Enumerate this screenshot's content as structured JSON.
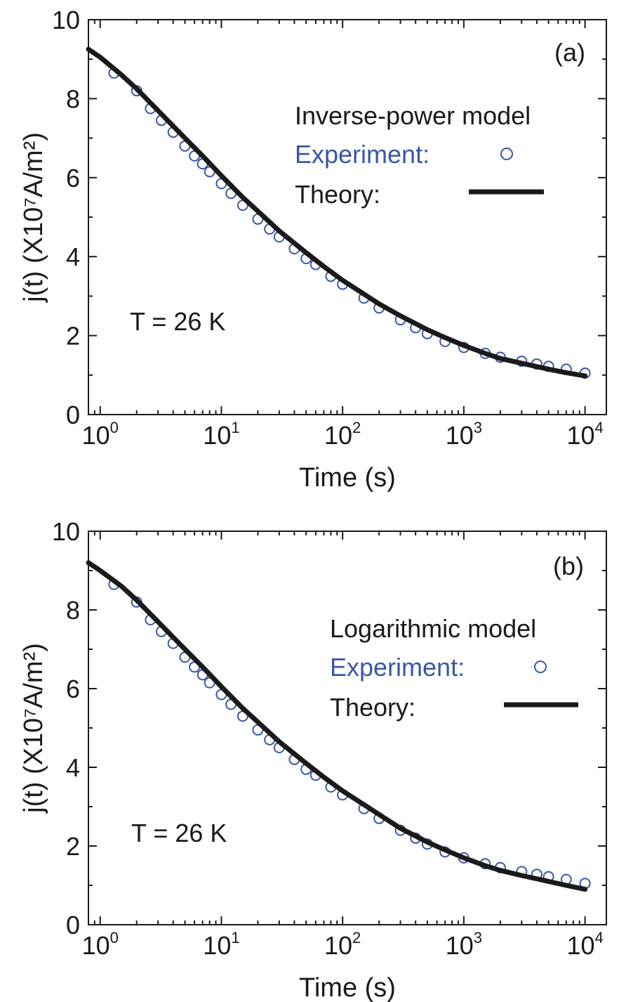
{
  "chart_data": [
    {
      "type": "scatter",
      "panel_label": "(a)",
      "annotation": "T = 26 K",
      "legend_title": "Inverse-power model",
      "legend_placement": "top-right",
      "xlabel": "Time (s)",
      "ylabel": "j(t) (X10⁷A/m²)",
      "xscale": "log",
      "xlim": [
        0.8,
        15000
      ],
      "ylim": [
        0,
        10
      ],
      "x_ticks": [
        1,
        10,
        100,
        1000,
        10000
      ],
      "y_ticks": [
        0,
        2,
        4,
        6,
        8,
        10
      ],
      "series": [
        {
          "name": "Experiment:",
          "marker": "open-circle",
          "color": "#3a57a7",
          "x": [
            1.3,
            2,
            2.6,
            3.2,
            4,
            5,
            6,
            7,
            8,
            10,
            12,
            15,
            20,
            25,
            30,
            40,
            50,
            60,
            80,
            100,
            150,
            200,
            300,
            400,
            500,
            700,
            1000,
            1500,
            2000,
            3000,
            4000,
            5000,
            7000,
            10000
          ],
          "y": [
            8.65,
            8.2,
            7.75,
            7.45,
            7.15,
            6.8,
            6.55,
            6.35,
            6.15,
            5.85,
            5.6,
            5.3,
            4.95,
            4.7,
            4.5,
            4.2,
            3.95,
            3.8,
            3.5,
            3.3,
            2.95,
            2.7,
            2.4,
            2.2,
            2.05,
            1.85,
            1.7,
            1.55,
            1.45,
            1.35,
            1.28,
            1.22,
            1.15,
            1.05
          ]
        },
        {
          "name": "Theory:",
          "marker": "line",
          "color": "#1a1a1a",
          "x": [
            0.8,
            1,
            1.5,
            2,
            3,
            5,
            7,
            10,
            15,
            20,
            30,
            50,
            70,
            100,
            150,
            200,
            300,
            500,
            700,
            1000,
            1500,
            2000,
            3000,
            5000,
            7000,
            10000
          ],
          "y": [
            9.25,
            9.05,
            8.6,
            8.25,
            7.7,
            7.0,
            6.55,
            6.05,
            5.5,
            5.15,
            4.65,
            4.1,
            3.75,
            3.4,
            3.05,
            2.8,
            2.5,
            2.15,
            1.95,
            1.75,
            1.55,
            1.42,
            1.3,
            1.15,
            1.06,
            0.98
          ]
        }
      ]
    },
    {
      "type": "scatter",
      "panel_label": "(b)",
      "annotation": "T = 26 K",
      "legend_title": "Logarithmic model",
      "legend_placement": "top-right",
      "xlabel": "Time (s)",
      "ylabel": "j(t) (X10⁷A/m²)",
      "xscale": "log",
      "xlim": [
        0.8,
        15000
      ],
      "ylim": [
        0,
        10
      ],
      "x_ticks": [
        1,
        10,
        100,
        1000,
        10000
      ],
      "y_ticks": [
        0,
        2,
        4,
        6,
        8,
        10
      ],
      "series": [
        {
          "name": "Experiment:",
          "marker": "open-circle",
          "color": "#3a57a7",
          "x": [
            1.3,
            2,
            2.6,
            3.2,
            4,
            5,
            6,
            7,
            8,
            10,
            12,
            15,
            20,
            25,
            30,
            40,
            50,
            60,
            80,
            100,
            150,
            200,
            300,
            400,
            500,
            700,
            1000,
            1500,
            2000,
            3000,
            4000,
            5000,
            7000,
            10000
          ],
          "y": [
            8.65,
            8.2,
            7.75,
            7.45,
            7.15,
            6.8,
            6.55,
            6.35,
            6.15,
            5.85,
            5.6,
            5.3,
            4.95,
            4.7,
            4.5,
            4.2,
            3.95,
            3.8,
            3.5,
            3.3,
            2.95,
            2.7,
            2.4,
            2.2,
            2.05,
            1.85,
            1.7,
            1.55,
            1.45,
            1.35,
            1.28,
            1.22,
            1.15,
            1.05
          ]
        },
        {
          "name": "Theory:",
          "marker": "line",
          "color": "#1a1a1a",
          "x": [
            0.8,
            1,
            1.5,
            2,
            3,
            5,
            7,
            10,
            15,
            20,
            30,
            50,
            70,
            100,
            150,
            200,
            300,
            500,
            700,
            1000,
            1500,
            2000,
            3000,
            5000,
            7000,
            10000
          ],
          "y": [
            9.2,
            9.0,
            8.6,
            8.25,
            7.7,
            7.0,
            6.55,
            6.05,
            5.5,
            5.15,
            4.65,
            4.1,
            3.75,
            3.4,
            3.05,
            2.8,
            2.45,
            2.1,
            1.9,
            1.7,
            1.5,
            1.38,
            1.25,
            1.1,
            1.0,
            0.9
          ]
        }
      ]
    }
  ]
}
